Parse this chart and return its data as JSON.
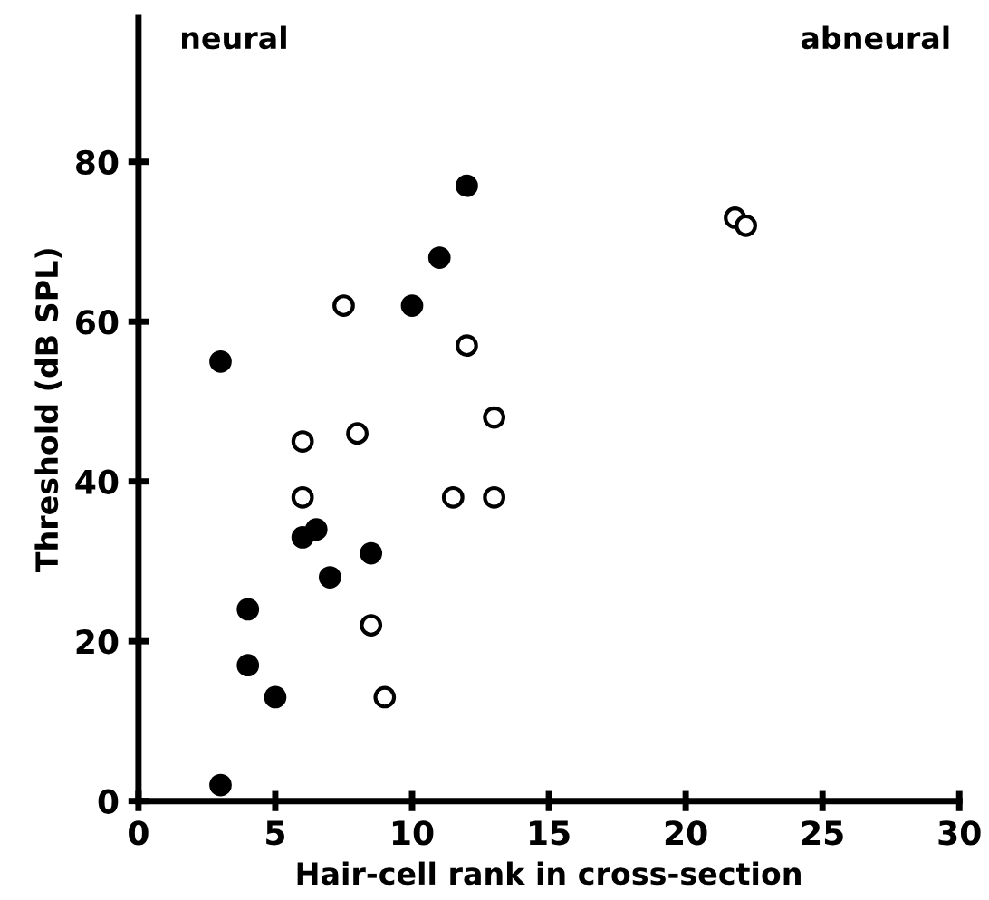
{
  "chart_data": {
    "type": "scatter",
    "xlabel": "Hair-cell rank in cross-section",
    "ylabel": "Threshold (dB SPL)",
    "annotations": [
      "neural",
      "abneural"
    ],
    "series": [
      {
        "color": "#000000",
        "x": [
          3,
          3,
          4,
          4,
          5,
          6,
          6.5,
          7,
          8.5,
          10,
          11,
          12
        ],
        "values": [
          55,
          2,
          24,
          17,
          13,
          33,
          34,
          28,
          31,
          62,
          68,
          77
        ]
      },
      {
        "color": "#ffffff",
        "x": [
          7.5,
          12,
          6,
          8,
          13,
          6,
          11.5,
          13,
          8.5,
          9,
          21.8,
          22.2
        ],
        "values": [
          62,
          57,
          45,
          46,
          48,
          38,
          38,
          38,
          22,
          13,
          73,
          72
        ]
      }
    ],
    "marker": "circle",
    "xlim": [
      0,
      30
    ],
    "ylim": [
      0,
      98
    ],
    "xticks": [
      0,
      5,
      10,
      15,
      20,
      25,
      30
    ],
    "yticks": [
      0,
      20,
      40,
      60,
      80
    ],
    "grid": false,
    "legend": false
  }
}
